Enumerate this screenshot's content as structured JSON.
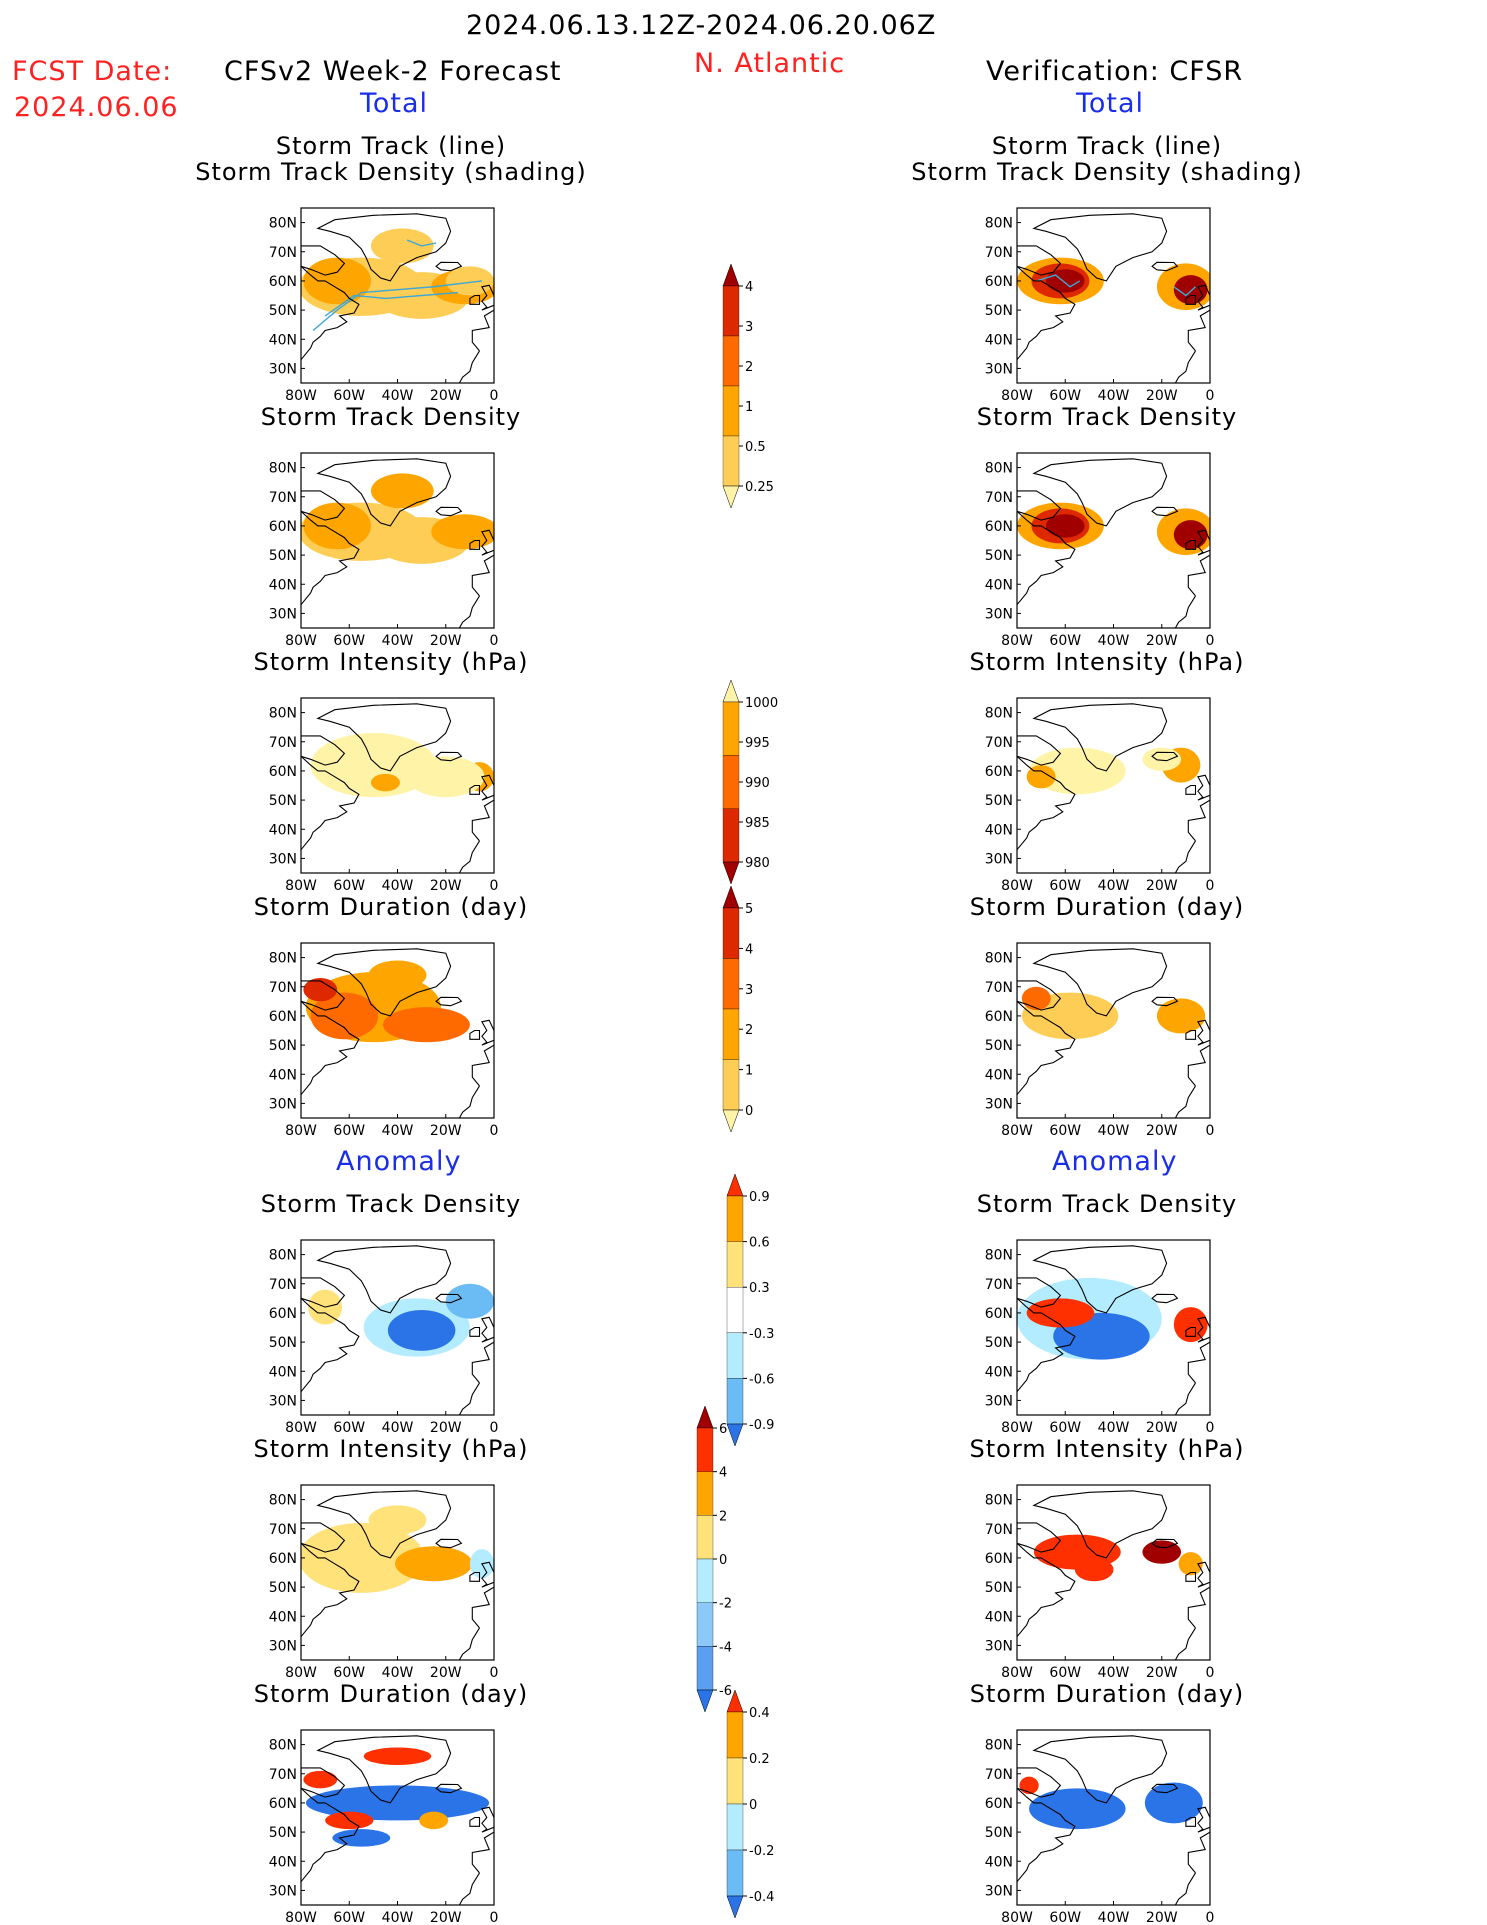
{
  "header": {
    "date_range": "2024.06.13.12Z-2024.06.20.06Z",
    "fcst_label": "FCST Date:",
    "fcst_date": "2024.06.06",
    "forecast_label": "CFSv2 Week-2 Forecast",
    "region": "N. Atlantic",
    "verification_label": "Verification: CFSR",
    "total_left": "Total",
    "total_right": "Total",
    "anomaly_left": "Anomaly",
    "anomaly_right": "Anomaly"
  },
  "map_axes": {
    "lat_ticks": [
      "80N",
      "70N",
      "60N",
      "50N",
      "40N",
      "30N"
    ],
    "lon_ticks": [
      "80W",
      "60W",
      "40W",
      "20W",
      "0"
    ]
  },
  "panels": [
    {
      "title_line1": "Storm Track (line)",
      "title_line2": "Storm Track Density (shading)"
    },
    {
      "title_line1": "Storm Track Density"
    },
    {
      "title_line1": "Storm Intensity (hPa)"
    },
    {
      "title_line1": "Storm Duration (day)"
    },
    {
      "title_line1": "Storm Track Density"
    },
    {
      "title_line1": "Storm Intensity (hPa)"
    },
    {
      "title_line1": "Storm Duration (day)"
    }
  ],
  "colorbars": [
    {
      "labels": [
        "4",
        "3",
        "2",
        "1",
        "0.5",
        "0.25"
      ],
      "colors": [
        "#a00000",
        "#dd2800",
        "#ff6a00",
        "#ffa500",
        "#fdcd55",
        "#fff3a8"
      ]
    },
    {
      "labels": [
        "1000",
        "995",
        "990",
        "985",
        "980"
      ],
      "colors": [
        "#fff3a8",
        "#ffa500",
        "#ff6a00",
        "#dd2800",
        "#a00000"
      ]
    },
    {
      "labels": [
        "5",
        "4",
        "3",
        "2",
        "1",
        "0"
      ],
      "colors": [
        "#a00000",
        "#dd2800",
        "#ff6a00",
        "#ffa500",
        "#fdcd55",
        "#fff3a8"
      ]
    },
    {
      "labels": [
        "0.9",
        "0.6",
        "0.3",
        "-0.3",
        "-0.6",
        "-0.9"
      ],
      "colors": [
        "#ff3000",
        "#ffa500",
        "#ffe27a",
        "#ffffff",
        "#b3ecff",
        "#6bbcf5",
        "#2a74e8"
      ]
    },
    {
      "labels": [
        "6",
        "4",
        "2",
        "0",
        "-2",
        "-4",
        "-6"
      ],
      "colors": [
        "#a00000",
        "#ff3000",
        "#ffa500",
        "#ffe27a",
        "#b3ecff",
        "#8cc8f8",
        "#5a9ff0",
        "#2a74e8"
      ]
    },
    {
      "labels": [
        "0.4",
        "0.2",
        "0",
        "-0.2",
        "-0.4"
      ],
      "colors": [
        "#ff3000",
        "#ffa500",
        "#ffe27a",
        "#b3ecff",
        "#6bbcf5",
        "#2a74e8"
      ]
    }
  ],
  "chart_data": {
    "type": "heatmap",
    "description_level": "qualitative shaded maps",
    "forecast_fields": [
      {
        "panel": "Storm Track / Density",
        "units": "density",
        "scale": [
          0.25,
          0.5,
          1,
          2,
          3,
          4
        ]
      },
      {
        "panel": "Storm Track Density",
        "units": "density",
        "scale": [
          0.25,
          0.5,
          1,
          2,
          3,
          4
        ]
      },
      {
        "panel": "Storm Intensity",
        "units": "hPa",
        "scale": [
          1000,
          995,
          990,
          985,
          980
        ]
      },
      {
        "panel": "Storm Duration",
        "units": "day",
        "scale": [
          0,
          1,
          2,
          3,
          4,
          5
        ]
      },
      {
        "panel": "Storm Track Density Anomaly",
        "scale": [
          -0.9,
          -0.6,
          -0.3,
          0.3,
          0.6,
          0.9
        ]
      },
      {
        "panel": "Storm Intensity Anomaly",
        "units": "hPa",
        "scale": [
          -6,
          -4,
          -2,
          0,
          2,
          4,
          6
        ]
      },
      {
        "panel": "Storm Duration Anomaly",
        "units": "day",
        "scale": [
          -0.4,
          -0.2,
          0,
          0.2,
          0.4
        ]
      }
    ],
    "lon_range": [
      -80,
      0
    ],
    "lat_range": [
      25,
      85
    ]
  }
}
